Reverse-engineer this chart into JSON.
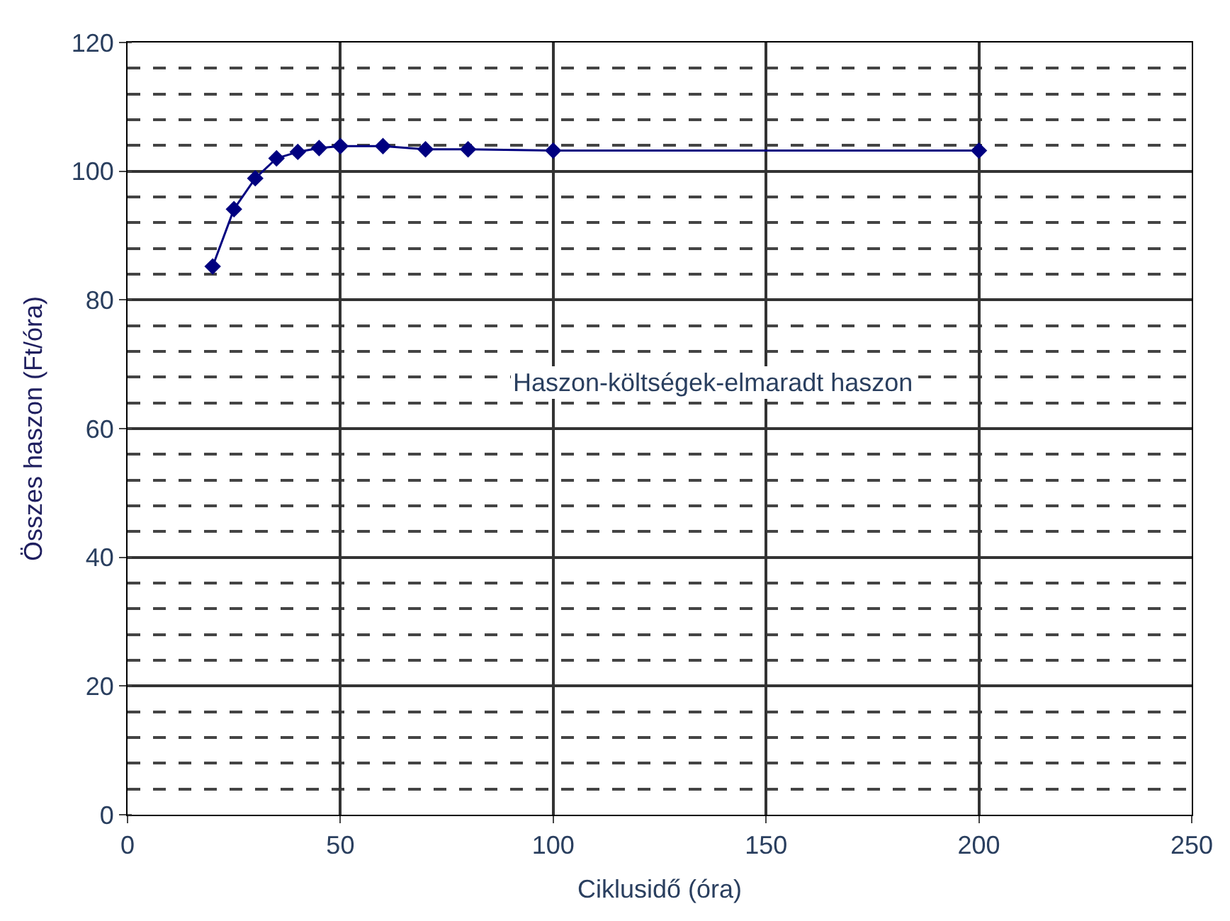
{
  "chart_data": {
    "type": "line",
    "xlabel": "Ciklusidő (óra)",
    "ylabel": "Összes haszon (Ft/óra)",
    "annotations": [
      "Haszon-költségek-elmaradt haszon"
    ],
    "x": [
      20,
      25,
      30,
      35,
      40,
      45,
      50,
      60,
      70,
      80,
      100,
      200
    ],
    "series": [
      {
        "color": "#000080",
        "values": [
          85.2,
          94.1,
          98.9,
          102,
          103,
          103.6,
          103.9,
          103.9,
          103.4,
          103.4,
          103.2,
          103.2
        ]
      }
    ],
    "xlim": [
      0,
      250
    ],
    "xticks": [
      0,
      50,
      100,
      150,
      200,
      250
    ],
    "ylim": [
      0,
      120
    ],
    "yticks": [
      0,
      20,
      40,
      60,
      80,
      100,
      120
    ],
    "grid": true,
    "marker": "diamond",
    "line_style": "solid"
  }
}
